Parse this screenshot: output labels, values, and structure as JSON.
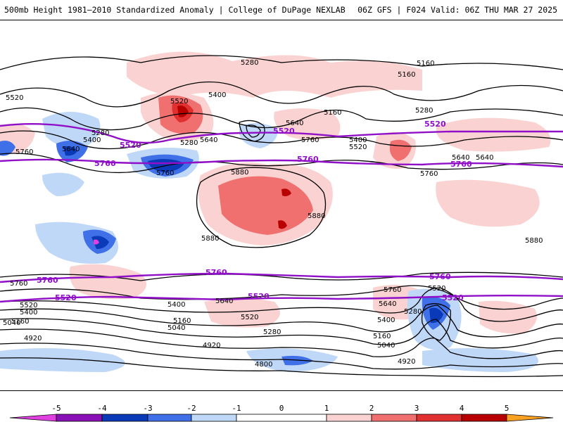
{
  "header": {
    "title_left": "500mb Height 1981–2010 Standardized Anomaly | College of DuPage NEXLAB",
    "title_right": "06Z GFS | F024 Valid: 06Z THU MAR 27 2025"
  },
  "colors": {
    "neg5": "#e040e0",
    "neg4": "#8a10b8",
    "neg3": "#0a3ab8",
    "neg2": "#3f70e8",
    "neg1": "#c0d8f8",
    "pos1": "#fbd2d2",
    "pos2": "#f07070",
    "pos3": "#e03030",
    "pos4": "#b80000",
    "pos5": "#f8a020",
    "contour_black": "#000000",
    "contour_purple": "#9010c8",
    "purple_label": "#9010c8"
  },
  "colorbar": {
    "labels": [
      "-5",
      "-4",
      "-3",
      "-2",
      "-1",
      "0",
      "1",
      "2",
      "3",
      "4",
      "5"
    ]
  },
  "contour_labels": {
    "black": [
      "5280",
      "5160",
      "5160",
      "5520",
      "5400",
      "5520",
      "5280",
      "5400",
      "5640",
      "5160",
      "5760",
      "5280",
      "5640",
      "5640",
      "5760",
      "5400",
      "5520",
      "5880",
      "5880",
      "5880",
      "5640",
      "5760",
      "5640",
      "5880",
      "5760",
      "5640",
      "5520",
      "5400",
      "5160",
      "5040",
      "5760",
      "5400",
      "5640",
      "5520",
      "5160",
      "5040",
      "5280",
      "4920",
      "4920",
      "4800",
      "5520",
      "5400",
      "5280",
      "5160",
      "5040",
      "4920",
      "5280",
      "5760"
    ],
    "purple": [
      "5520",
      "5520",
      "5520",
      "5760",
      "5760",
      "5760",
      "5760",
      "5760",
      "5760",
      "5520",
      "5520",
      "5520"
    ]
  }
}
